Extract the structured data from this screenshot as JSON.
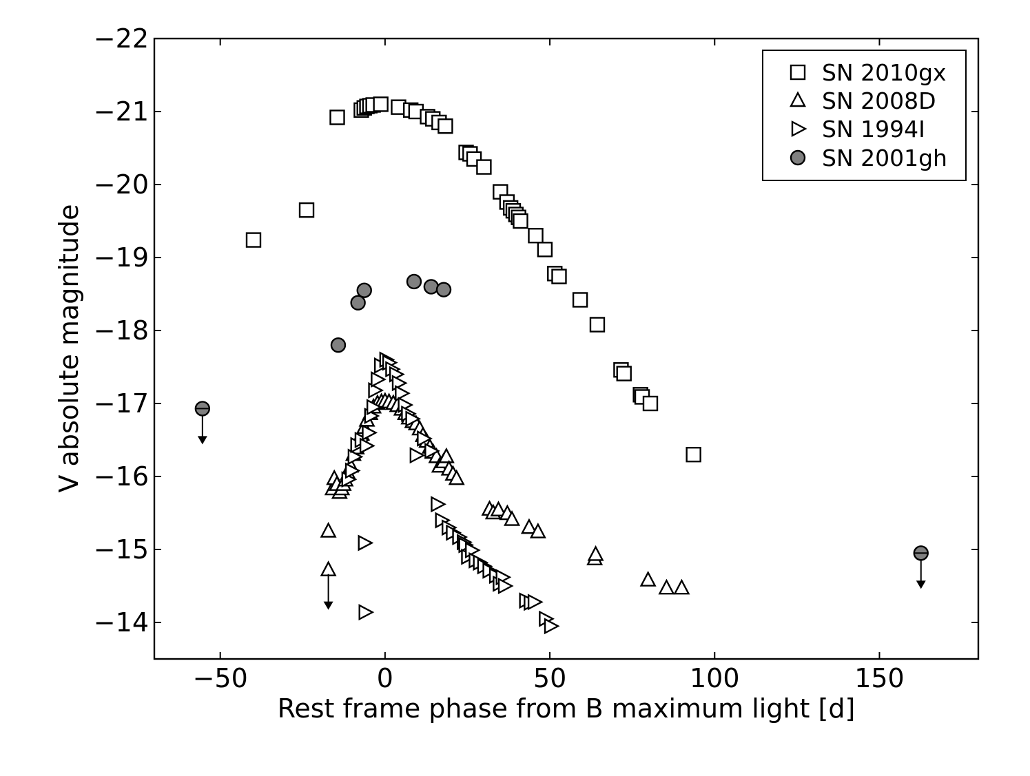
{
  "chart_data": {
    "type": "scatter",
    "title": "",
    "xlabel": "Rest frame phase from B maximum light [d]",
    "ylabel": "V absolute magnitude",
    "xlim": [
      -70,
      180
    ],
    "ylim": [
      -13.5,
      -22
    ],
    "y_inverted": true,
    "xticks": [
      -50,
      0,
      50,
      100,
      150
    ],
    "xtick_labels": [
      "−50",
      "0",
      "50",
      "100",
      "150"
    ],
    "yticks": [
      -14,
      -15,
      -16,
      -17,
      -18,
      -19,
      -20,
      -21,
      -22
    ],
    "ytick_labels": [
      "−14",
      "−15",
      "−16",
      "−17",
      "−18",
      "−19",
      "−20",
      "−21",
      "−22"
    ],
    "grid": false,
    "legend_position": "top-right",
    "colors": {
      "open_marker_fill": "#ffffff",
      "filled_marker": "#808080",
      "edge": "#000000"
    },
    "series": [
      {
        "name": "SN 2010gx",
        "marker": "square",
        "points": [
          [
            -39.9,
            -19.24
          ],
          [
            -23.8,
            -19.65
          ],
          [
            -14.5,
            -20.92
          ],
          [
            -7.2,
            -21.02
          ],
          [
            -6.3,
            -21.05
          ],
          [
            -5.5,
            -21.07
          ],
          [
            -4.6,
            -21.08
          ],
          [
            -3.6,
            -21.09
          ],
          [
            -1.3,
            -21.1
          ],
          [
            4.1,
            -21.06
          ],
          [
            7.8,
            -21.02
          ],
          [
            9.4,
            -21.0
          ],
          [
            12.9,
            -20.93
          ],
          [
            14.5,
            -20.9
          ],
          [
            16.4,
            -20.85
          ],
          [
            18.3,
            -20.8
          ],
          [
            24.6,
            -20.44
          ],
          [
            25.8,
            -20.42
          ],
          [
            27.0,
            -20.35
          ],
          [
            30.0,
            -20.24
          ],
          [
            35.0,
            -19.9
          ],
          [
            37.0,
            -19.76
          ],
          [
            38.1,
            -19.68
          ],
          [
            38.9,
            -19.64
          ],
          [
            39.7,
            -19.59
          ],
          [
            40.5,
            -19.55
          ],
          [
            41.1,
            -19.5
          ],
          [
            45.7,
            -19.3
          ],
          [
            48.5,
            -19.11
          ],
          [
            51.5,
            -18.78
          ],
          [
            52.8,
            -18.74
          ],
          [
            59.2,
            -18.42
          ],
          [
            64.4,
            -18.08
          ],
          [
            71.6,
            -17.46
          ],
          [
            72.5,
            -17.41
          ],
          [
            77.5,
            -17.12
          ],
          [
            78.0,
            -17.09
          ],
          [
            80.5,
            -17.0
          ],
          [
            93.6,
            -16.3
          ]
        ]
      },
      {
        "name": "SN 2008D",
        "marker": "triangle-up",
        "points": [
          [
            -17.2,
            -15.25
          ],
          [
            -17.2,
            -14.72
          ],
          [
            -15.9,
            -15.83
          ],
          [
            -15.4,
            -15.97
          ],
          [
            -14.6,
            -15.89
          ],
          [
            -13.8,
            -15.78
          ],
          [
            -13.1,
            -15.83
          ],
          [
            -12.6,
            -15.89
          ],
          [
            -12.0,
            -15.95
          ],
          [
            -11.2,
            -16.04
          ],
          [
            -10.4,
            -16.14
          ],
          [
            -9.6,
            -16.3
          ],
          [
            -8.6,
            -16.39
          ],
          [
            -7.8,
            -16.52
          ],
          [
            -7.1,
            -16.58
          ],
          [
            -6.3,
            -16.67
          ],
          [
            -5.5,
            -16.77
          ],
          [
            -4.5,
            -16.86
          ],
          [
            -3.5,
            -16.95
          ],
          [
            -2.3,
            -17.0
          ],
          [
            -1.1,
            -17.02
          ],
          [
            0.0,
            -17.03
          ],
          [
            1.2,
            -17.02
          ],
          [
            2.5,
            -17.0
          ],
          [
            3.7,
            -16.97
          ],
          [
            5.0,
            -16.92
          ],
          [
            6.1,
            -16.86
          ],
          [
            7.2,
            -16.8
          ],
          [
            8.3,
            -16.75
          ],
          [
            9.4,
            -16.72
          ],
          [
            10.5,
            -16.65
          ],
          [
            11.5,
            -16.56
          ],
          [
            12.6,
            -16.48
          ],
          [
            13.6,
            -16.4
          ],
          [
            14.6,
            -16.33
          ],
          [
            15.6,
            -16.27
          ],
          [
            16.5,
            -16.14
          ],
          [
            17.7,
            -16.2
          ],
          [
            18.6,
            -16.27
          ],
          [
            19.4,
            -16.1
          ],
          [
            20.6,
            -16.03
          ],
          [
            21.7,
            -15.97
          ],
          [
            31.7,
            -15.55
          ],
          [
            32.8,
            -15.5
          ],
          [
            34.4,
            -15.54
          ],
          [
            37.1,
            -15.49
          ],
          [
            38.5,
            -15.41
          ],
          [
            43.7,
            -15.3
          ],
          [
            46.4,
            -15.24
          ],
          [
            63.6,
            -14.87
          ],
          [
            63.9,
            -14.93
          ],
          [
            79.8,
            -14.58
          ],
          [
            85.4,
            -14.47
          ],
          [
            90.0,
            -14.47
          ]
        ]
      },
      {
        "name": "SN 1994I",
        "marker": "triangle-right",
        "points": [
          [
            -6.3,
            -15.09
          ],
          [
            -6.1,
            -14.14
          ],
          [
            -11.3,
            -15.96
          ],
          [
            -10.2,
            -16.08
          ],
          [
            -9.4,
            -16.27
          ],
          [
            -8.6,
            -16.43
          ],
          [
            -7.3,
            -16.5
          ],
          [
            -5.8,
            -16.42
          ],
          [
            -5.1,
            -16.6
          ],
          [
            -4.4,
            -16.83
          ],
          [
            -3.7,
            -16.95
          ],
          [
            -3.2,
            -17.18
          ],
          [
            -2.4,
            -17.33
          ],
          [
            -1.4,
            -17.52
          ],
          [
            0.2,
            -17.6
          ],
          [
            1.1,
            -17.56
          ],
          [
            2.0,
            -17.47
          ],
          [
            3.2,
            -17.4
          ],
          [
            4.0,
            -17.28
          ],
          [
            4.9,
            -17.14
          ],
          [
            5.8,
            -16.98
          ],
          [
            6.8,
            -16.86
          ],
          [
            8.1,
            -16.79
          ],
          [
            9.4,
            -16.29
          ],
          [
            11.6,
            -16.52
          ],
          [
            13.9,
            -16.35
          ],
          [
            15.8,
            -15.62
          ],
          [
            17.1,
            -15.4
          ],
          [
            19.1,
            -15.3
          ],
          [
            20.4,
            -15.23
          ],
          [
            22.3,
            -15.17
          ],
          [
            23.7,
            -15.1
          ],
          [
            24.2,
            -15.06
          ],
          [
            25.0,
            -14.9
          ],
          [
            26.2,
            -14.99
          ],
          [
            27.3,
            -14.85
          ],
          [
            28.6,
            -14.82
          ],
          [
            29.9,
            -14.77
          ],
          [
            31.5,
            -14.71
          ],
          [
            33.5,
            -14.64
          ],
          [
            34.6,
            -14.53
          ],
          [
            35.5,
            -14.62
          ],
          [
            36.2,
            -14.5
          ],
          [
            42.6,
            -14.3
          ],
          [
            44.0,
            -14.27
          ],
          [
            45.2,
            -14.28
          ],
          [
            48.6,
            -14.05
          ],
          [
            50.2,
            -13.95
          ]
        ]
      },
      {
        "name": "SN 2001gh",
        "marker": "circle-filled",
        "points": [
          [
            -14.2,
            -17.8
          ],
          [
            -8.2,
            -18.38
          ],
          [
            -6.3,
            -18.55
          ],
          [
            8.8,
            -18.67
          ],
          [
            14.0,
            -18.6
          ],
          [
            17.8,
            -18.56
          ]
        ],
        "upper_limits": [
          [
            -55.4,
            -16.93
          ],
          [
            162.6,
            -14.95
          ]
        ]
      }
    ],
    "extra_upper_limits": [
      {
        "series": "SN 2008D",
        "point": [
          -17.2,
          -14.72
        ]
      }
    ]
  }
}
